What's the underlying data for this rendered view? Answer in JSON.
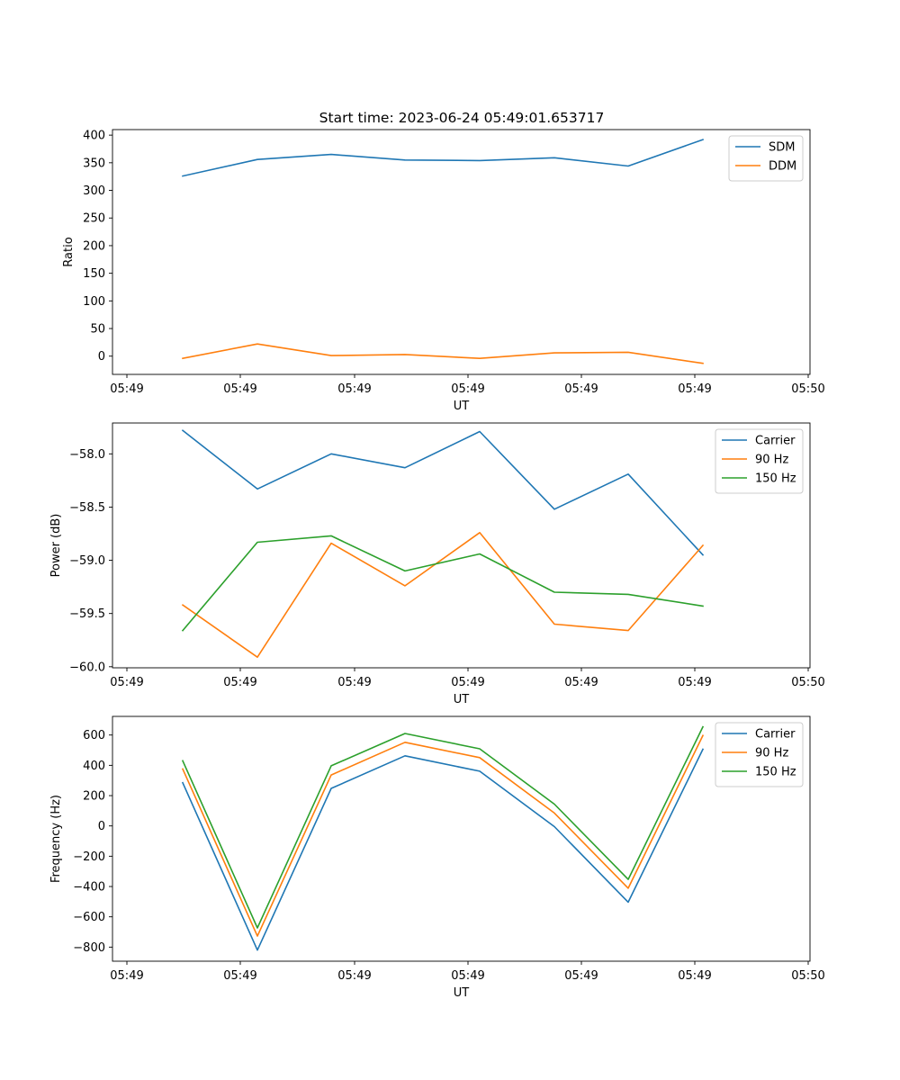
{
  "figure": {
    "title": "Start time: 2023-06-24 05:49:01.653717"
  },
  "colors": {
    "blue": "#1f77b4",
    "orange": "#ff7f0e",
    "green": "#2ca02c",
    "axes": "#000000",
    "legend_border": "#cccccc"
  },
  "chart_data": [
    {
      "type": "line",
      "xlabel": "UT",
      "ylabel": "Ratio",
      "x_tick_labels": [
        "05:49",
        "05:49",
        "05:49",
        "05:49",
        "05:49",
        "05:49",
        "05:50"
      ],
      "yticks": [
        0,
        50,
        100,
        150,
        200,
        250,
        300,
        350,
        400
      ],
      "ytick_labels": [
        "0",
        "50",
        "100",
        "150",
        "200",
        "250",
        "300",
        "350",
        "400"
      ],
      "ylim": [
        -33,
        410
      ],
      "legend": "upper right",
      "grid": false,
      "series": [
        {
          "name": "SDM",
          "color": "#1f77b4",
          "values": [
            326,
            356,
            365,
            355,
            354,
            359,
            344,
            392
          ]
        },
        {
          "name": "DDM",
          "color": "#ff7f0e",
          "values": [
            -4,
            22,
            1,
            3,
            -4,
            6,
            7,
            -13
          ]
        }
      ]
    },
    {
      "type": "line",
      "xlabel": "UT",
      "ylabel": "Power (dB)",
      "x_tick_labels": [
        "05:49",
        "05:49",
        "05:49",
        "05:49",
        "05:49",
        "05:49",
        "05:50"
      ],
      "yticks": [
        -60.0,
        -59.5,
        -59.0,
        -58.5,
        -58.0
      ],
      "ytick_labels": [
        "−60.0",
        "−59.5",
        "−59.0",
        "−58.5",
        "−58.0"
      ],
      "ylim": [
        -60.01,
        -57.71
      ],
      "legend": "upper right",
      "grid": false,
      "series": [
        {
          "name": "Carrier",
          "color": "#1f77b4",
          "values": [
            -57.78,
            -58.33,
            -58.0,
            -58.13,
            -57.79,
            -58.52,
            -58.19,
            -58.95
          ]
        },
        {
          "name": "90 Hz",
          "color": "#ff7f0e",
          "values": [
            -59.42,
            -59.91,
            -58.84,
            -59.24,
            -58.74,
            -59.6,
            -59.66,
            -58.86
          ]
        },
        {
          "name": "150 Hz",
          "color": "#2ca02c",
          "values": [
            -59.66,
            -58.83,
            -58.77,
            -59.1,
            -58.94,
            -59.3,
            -59.32,
            -59.43
          ]
        }
      ]
    },
    {
      "type": "line",
      "xlabel": "UT",
      "ylabel": "Frequency (Hz)",
      "x_tick_labels": [
        "05:49",
        "05:49",
        "05:49",
        "05:49",
        "05:49",
        "05:49",
        "05:50"
      ],
      "yticks": [
        -800,
        -600,
        -400,
        -200,
        0,
        200,
        400,
        600
      ],
      "ytick_labels": [
        "−800",
        "−600",
        "−400",
        "−200",
        "0",
        "200",
        "400",
        "600"
      ],
      "ylim": [
        -893,
        723
      ],
      "legend": "upper right",
      "grid": false,
      "series": [
        {
          "name": "Carrier",
          "color": "#1f77b4",
          "values": [
            285,
            -820,
            248,
            463,
            361,
            -5,
            -503,
            506
          ]
        },
        {
          "name": "90 Hz",
          "color": "#ff7f0e",
          "values": [
            376,
            -727,
            336,
            552,
            451,
            85,
            -411,
            597
          ]
        },
        {
          "name": "150 Hz",
          "color": "#2ca02c",
          "values": [
            430,
            -673,
            397,
            610,
            509,
            144,
            -353,
            654
          ]
        }
      ]
    }
  ]
}
